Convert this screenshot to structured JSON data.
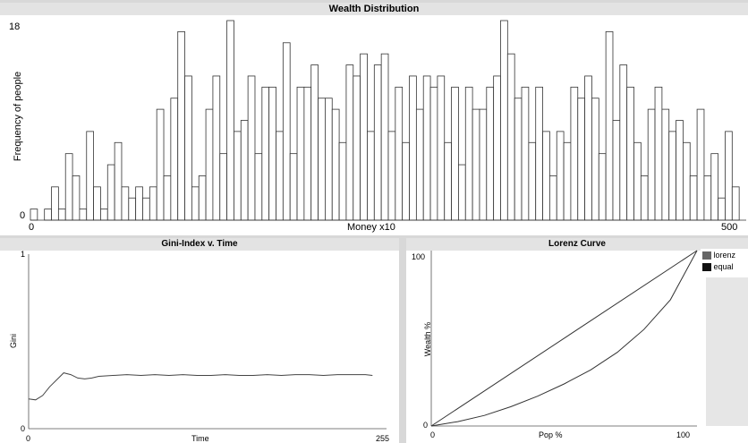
{
  "chart_data": [
    {
      "type": "bar",
      "title": "Wealth Distribution",
      "xlabel": "Money x10",
      "ylabel": "Frequency of people",
      "xlim": [
        0,
        500
      ],
      "ylim": [
        0,
        18
      ],
      "x_ticks": [
        "0",
        "500"
      ],
      "y_ticks": [
        "0",
        "18"
      ],
      "values": [
        1,
        0,
        1,
        3,
        1,
        6,
        4,
        1,
        8,
        3,
        1,
        5,
        7,
        3,
        2,
        3,
        2,
        3,
        10,
        4,
        11,
        17,
        13,
        3,
        4,
        10,
        13,
        6,
        18,
        8,
        9,
        13,
        6,
        12,
        12,
        8,
        16,
        6,
        12,
        12,
        14,
        11,
        11,
        10,
        7,
        14,
        13,
        15,
        8,
        14,
        15,
        8,
        12,
        7,
        13,
        10,
        13,
        12,
        13,
        7,
        12,
        5,
        12,
        10,
        10,
        12,
        13,
        18,
        15,
        11,
        12,
        7,
        12,
        8,
        4,
        8,
        7,
        12,
        11,
        13,
        11,
        6,
        17,
        9,
        14,
        12,
        7,
        4,
        10,
        12,
        10,
        8,
        9,
        7,
        4,
        10,
        4,
        6,
        2,
        8,
        3,
        0
      ]
    },
    {
      "type": "line",
      "title": "Gini-Index v. Time",
      "xlabel": "Time",
      "ylabel": "Gini",
      "xlim": [
        0,
        255
      ],
      "ylim": [
        0,
        1
      ],
      "x_ticks": [
        "0",
        "255"
      ],
      "y_ticks": [
        "0",
        "1"
      ],
      "series": [
        {
          "x": [
            0,
            5,
            10,
            15,
            20,
            25,
            30,
            35,
            40,
            45,
            50,
            60,
            70,
            80,
            90,
            100,
            110,
            120,
            130,
            140,
            150,
            160,
            170,
            180,
            190,
            200,
            210,
            220,
            230,
            240,
            245
          ],
          "y": [
            0.17,
            0.165,
            0.19,
            0.24,
            0.28,
            0.32,
            0.31,
            0.29,
            0.285,
            0.29,
            0.3,
            0.305,
            0.31,
            0.305,
            0.31,
            0.305,
            0.31,
            0.305,
            0.305,
            0.31,
            0.305,
            0.305,
            0.31,
            0.305,
            0.31,
            0.31,
            0.305,
            0.31,
            0.31,
            0.31,
            0.305
          ]
        }
      ]
    },
    {
      "type": "line",
      "title": "Lorenz Curve",
      "xlabel": "Pop %",
      "ylabel": "Wealth %",
      "xlim": [
        0,
        100
      ],
      "ylim": [
        0,
        100
      ],
      "x_ticks": [
        "0",
        "100"
      ],
      "y_ticks": [
        "0",
        "100"
      ],
      "legend_position": "top-right",
      "series": [
        {
          "name": "lorenz",
          "x": [
            0,
            10,
            20,
            30,
            40,
            50,
            60,
            70,
            80,
            90,
            100
          ],
          "y": [
            0,
            2.5,
            6,
            11,
            17,
            24,
            32,
            42,
            55,
            72,
            100
          ]
        },
        {
          "name": "equal",
          "x": [
            0,
            100
          ],
          "y": [
            0,
            100
          ]
        }
      ]
    }
  ],
  "colors": {
    "panel_bg": "#ffffff",
    "window_bg": "#d8d8d8",
    "header_bg": "#e3e3e3",
    "line": "#333333",
    "legend_lorenz": "#666666",
    "legend_equal": "#111111"
  }
}
